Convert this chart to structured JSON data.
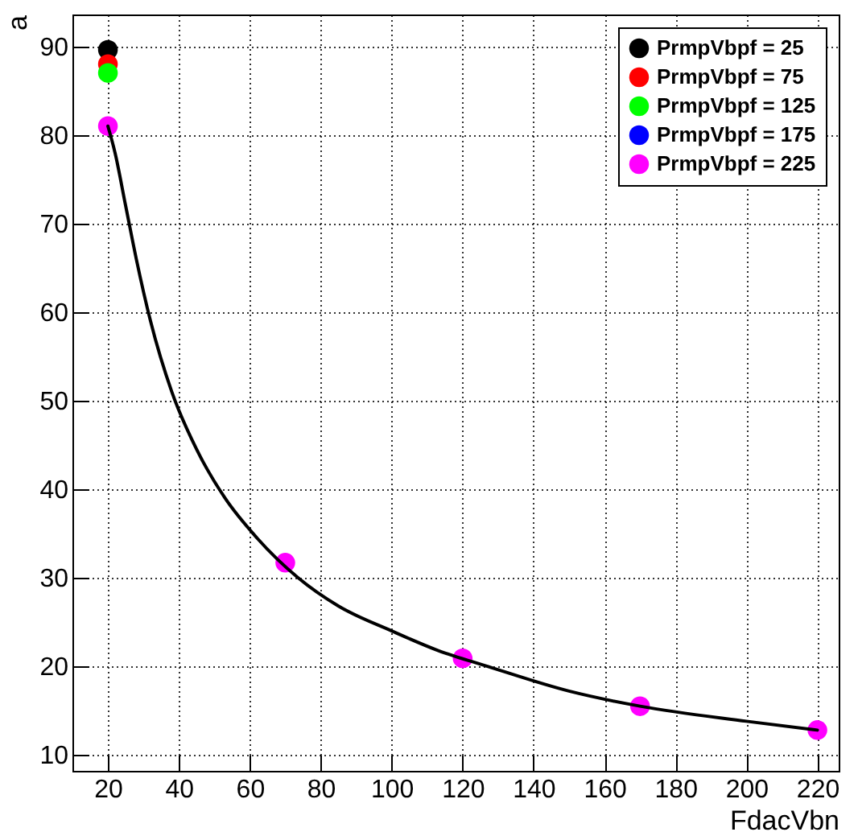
{
  "chart_data": {
    "type": "scatter",
    "xlabel": "FdacVbn",
    "ylabel": "a",
    "x": [
      20,
      70,
      120,
      170,
      220
    ],
    "xlim": [
      10,
      226
    ],
    "ylim": [
      8.2,
      93.6
    ],
    "xticks": [
      20,
      40,
      60,
      80,
      100,
      120,
      140,
      160,
      180,
      200,
      220
    ],
    "yticks": [
      10,
      20,
      30,
      40,
      50,
      60,
      70,
      80,
      90
    ],
    "grid": true,
    "legend": "top right",
    "marker": "circle",
    "series": [
      {
        "name": "PrmpVbpf = 25",
        "color": "#000000",
        "values": [
          89.6,
          null,
          null,
          null,
          null
        ]
      },
      {
        "name": "PrmpVbpf = 75",
        "color": "#ff0000",
        "values": [
          88,
          null,
          null,
          null,
          null
        ]
      },
      {
        "name": "PrmpVbpf = 125",
        "color": "#00ff00",
        "values": [
          87,
          null,
          null,
          null,
          null
        ]
      },
      {
        "name": "PrmpVbpf = 175",
        "color": "#0000ff",
        "values": [
          null,
          null,
          null,
          null,
          null
        ]
      },
      {
        "name": "PrmpVbpf = 225",
        "color": "#ff00ff",
        "values": [
          81,
          31.7,
          20.9,
          15.5,
          12.8
        ]
      },
      {
        "type": "line",
        "color": "#000000",
        "marker": "none",
        "line_style": "solid",
        "x": [
          20,
          22,
          25,
          28,
          32,
          38,
          45,
          53,
          62,
          73.6,
          85,
          100,
          113,
          127,
          150,
          170,
          200,
          220
        ],
        "values": [
          81,
          78,
          72,
          66,
          59,
          51,
          44.5,
          39,
          34.5,
          30,
          26.8,
          24,
          21.8,
          20,
          17.2,
          15.5,
          13.8,
          12.8
        ]
      }
    ]
  }
}
